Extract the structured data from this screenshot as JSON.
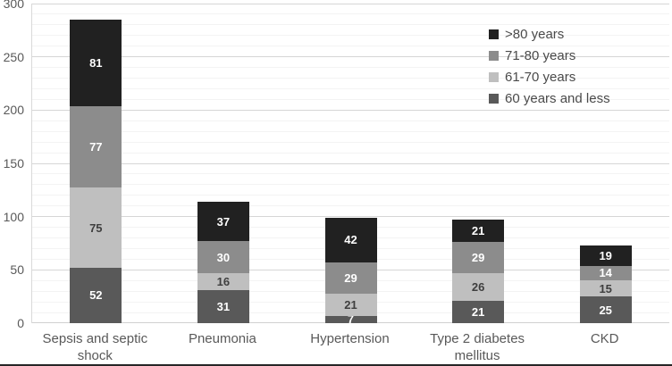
{
  "chart_data": {
    "type": "bar",
    "stacked": true,
    "title": "",
    "categories": [
      "Sepsis and septic shock",
      "Pneumonia",
      "Hypertension",
      "Type 2 diabetes mellitus",
      "CKD"
    ],
    "series": [
      {
        "name": "60 years and less",
        "color": "#595959",
        "label_color": "#ffffff",
        "values": [
          52,
          31,
          7,
          21,
          25
        ]
      },
      {
        "name": "61-70 years",
        "color": "#bfbfbf",
        "label_color": "#3f3f3f",
        "values": [
          75,
          16,
          21,
          26,
          15
        ]
      },
      {
        "name": "71-80 years",
        "color": "#8c8c8c",
        "label_color": "#ffffff",
        "values": [
          77,
          30,
          29,
          29,
          14
        ]
      },
      {
        "name": ">80 years",
        "color": "#212121",
        "label_color": "#ffffff",
        "values": [
          81,
          37,
          42,
          21,
          19
        ]
      }
    ],
    "legend": [
      {
        "label": ">80 years",
        "color": "#212121"
      },
      {
        "label": "71-80 years",
        "color": "#8c8c8c"
      },
      {
        "label": "61-70 years",
        "color": "#bfbfbf"
      },
      {
        "label": "60 years and less",
        "color": "#595959"
      }
    ],
    "y_ticks": [
      0,
      50,
      100,
      150,
      200,
      250,
      300
    ],
    "ylim": [
      0,
      300
    ],
    "minor_grid_step": 10,
    "major_grid_step": 50,
    "grid": true,
    "legend_position": "top-right",
    "xlabel": "",
    "ylabel": ""
  }
}
